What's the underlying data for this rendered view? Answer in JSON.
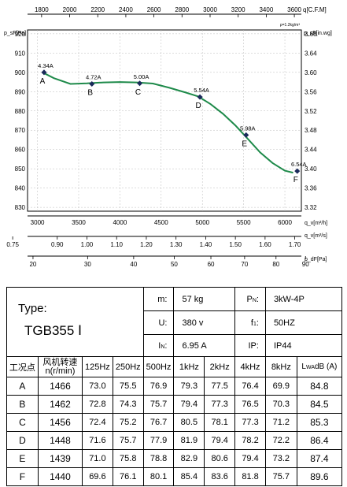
{
  "chart_data": {
    "type": "line",
    "top_axis": {
      "unit": "q[C.F.M]",
      "ticks": [
        1800,
        2000,
        2200,
        2400,
        2600,
        2800,
        3000,
        3200,
        3400,
        3600
      ],
      "range": [
        1700,
        3650
      ]
    },
    "density_note": "ρ=1.2kg/m³",
    "left_axis": {
      "label": "p_sF[Pa]",
      "ticks": [
        920,
        910,
        900,
        890,
        880,
        870,
        860,
        850,
        840,
        830
      ],
      "range": [
        828,
        922
      ]
    },
    "right_axis": {
      "label": "p_sF[in.wg]",
      "ticks": [
        "3.68",
        "3.64",
        "3.60",
        "3.56",
        "3.52",
        "3.48",
        "3.44",
        "3.40",
        "3.36",
        "3.32"
      ]
    },
    "x_m3h": {
      "unit": "q_v[m³/h]",
      "ticks": [
        3000,
        3500,
        4000,
        4500,
        5000,
        5500,
        6000
      ],
      "range": [
        2880,
        6200
      ]
    },
    "x_m3s": {
      "unit": "q_v[m³/s]",
      "ticks": [
        "0.75",
        "0.90",
        "1.00",
        "1.10",
        "1.20",
        "1.30",
        "1.40",
        "1.50",
        "1.60",
        "1.70"
      ]
    },
    "x_pa": {
      "unit": "p_dF[Pa]",
      "ticks": [
        20,
        30,
        40,
        50,
        60,
        70,
        80,
        90
      ]
    },
    "curve": [
      [
        3060,
        900
      ],
      [
        3200,
        897
      ],
      [
        3400,
        894
      ],
      [
        3600,
        894.3
      ],
      [
        3800,
        894.8
      ],
      [
        4000,
        895
      ],
      [
        4200,
        894.8
      ],
      [
        4400,
        894.2
      ],
      [
        4600,
        892
      ],
      [
        4800,
        889.5
      ],
      [
        4950,
        887.5
      ],
      [
        5100,
        883.5
      ],
      [
        5250,
        878.5
      ],
      [
        5400,
        872.5
      ],
      [
        5550,
        865.5
      ],
      [
        5700,
        858.5
      ],
      [
        5850,
        853
      ],
      [
        6000,
        849
      ],
      [
        6100,
        848
      ]
    ],
    "points": [
      {
        "id": "A",
        "x": 3080,
        "y": 900,
        "current": "4.34A"
      },
      {
        "id": "B",
        "x": 3660,
        "y": 894,
        "current": "4.72A"
      },
      {
        "id": "C",
        "x": 4240,
        "y": 894.3,
        "current": "5.00A"
      },
      {
        "id": "D",
        "x": 4970,
        "y": 887.2,
        "current": "5.54A"
      },
      {
        "id": "E",
        "x": 5530,
        "y": 867.5,
        "current": "5.98A"
      },
      {
        "id": "F",
        "x": 6150,
        "y": 848.8,
        "current": "6.54A"
      }
    ],
    "grid": true
  },
  "spec": {
    "type_label": "Type:",
    "model": "TGB355 Ⅰ",
    "mass_label": "m:",
    "mass_value": "57  kg",
    "voltage_label": "U:",
    "voltage_value": "380  v",
    "current_label": "I",
    "current_sub": "N",
    "current_value": "6.95  A",
    "power_label": "P",
    "power_sub": "N",
    "power_value": "3kW-4P",
    "freq_label": "f",
    "freq_sub": "1",
    "freq_value": "50HZ",
    "ip_label": "IP:",
    "ip_value": "IP44",
    "col_point": "工况点",
    "col_speed_line1": "风机转速",
    "col_speed_line2": "n(r/min)",
    "bands": [
      "125Hz",
      "250Hz",
      "500Hz",
      "1kHz",
      "2kHz",
      "4kHz",
      "8kHz"
    ],
    "col_lwa_prefix": "L",
    "col_lwa_sub": "WA",
    "col_lwa_suffix": "dB (A)",
    "rows": [
      {
        "point": "A",
        "speed": "1466",
        "values": [
          "73.0",
          "75.5",
          "76.9",
          "79.3",
          "77.5",
          "76.4",
          "69.9"
        ],
        "lwa": "84.8"
      },
      {
        "point": "B",
        "speed": "1462",
        "values": [
          "72.8",
          "74.3",
          "75.7",
          "79.4",
          "77.3",
          "76.5",
          "70.3"
        ],
        "lwa": "84.5"
      },
      {
        "point": "C",
        "speed": "1456",
        "values": [
          "72.4",
          "75.2",
          "76.7",
          "80.5",
          "78.1",
          "77.3",
          "71.2"
        ],
        "lwa": "85.3"
      },
      {
        "point": "D",
        "speed": "1448",
        "values": [
          "71.6",
          "75.7",
          "77.9",
          "81.9",
          "79.4",
          "78.2",
          "72.2"
        ],
        "lwa": "86.4"
      },
      {
        "point": "E",
        "speed": "1439",
        "values": [
          "71.0",
          "75.8",
          "78.8",
          "82.9",
          "80.6",
          "79.4",
          "73.2"
        ],
        "lwa": "87.4"
      },
      {
        "point": "F",
        "speed": "1440",
        "values": [
          "69.6",
          "76.1",
          "80.1",
          "85.4",
          "83.6",
          "81.8",
          "75.7"
        ],
        "lwa": "89.6"
      }
    ]
  }
}
